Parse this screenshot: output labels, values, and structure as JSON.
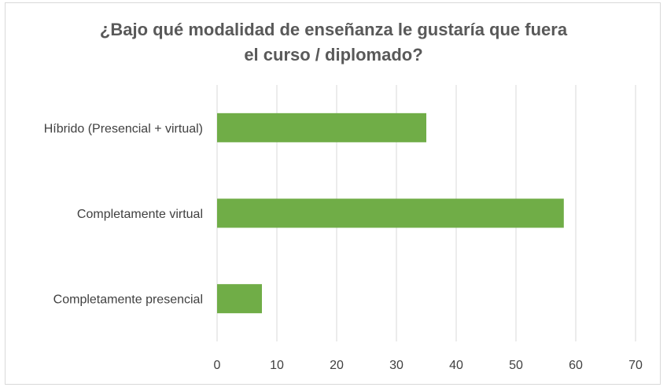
{
  "chart_data": {
    "type": "bar",
    "orientation": "horizontal",
    "title_lines": [
      "¿Bajo qué modalidad de enseñanza le gustaría que fuera",
      "el curso / diplomado?"
    ],
    "categories": [
      "Híbrido (Presencial + virtual)",
      "Completamente virtual",
      "Completamente presencial"
    ],
    "values": [
      35,
      58,
      7.5
    ],
    "xlim": [
      0,
      70
    ],
    "xticks": [
      0,
      10,
      20,
      30,
      40,
      50,
      60,
      70
    ],
    "grid": true,
    "legend": "none",
    "bar_color": "#70ad47",
    "grid_color": "#d9d9d9"
  }
}
